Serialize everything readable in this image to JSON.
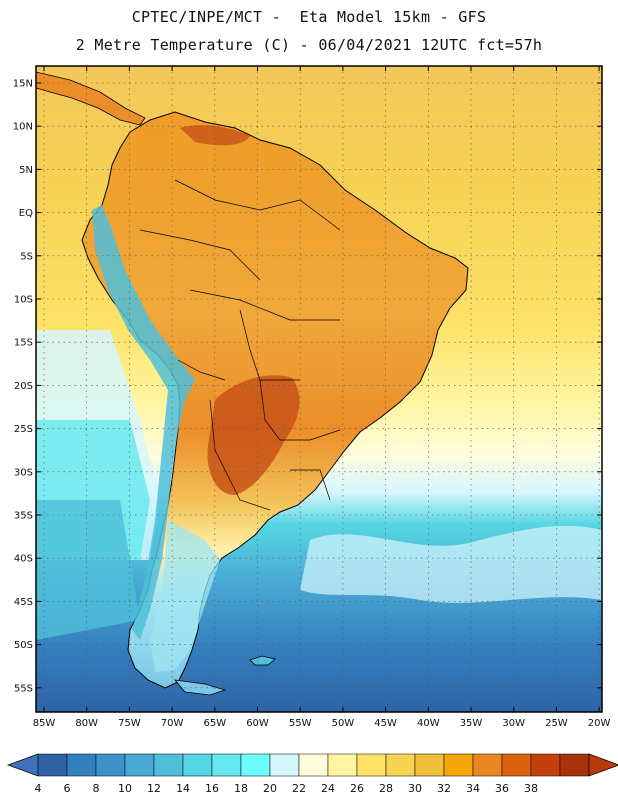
{
  "title_line1": "CPTEC/INPE/MCT -  Eta Model 15km - GFS",
  "title_line2": "2 Metre Temperature (C) - 06/04/2021 12UTC fct=57h",
  "lat_labels": [
    "15N",
    "10N",
    "5N",
    "EQ",
    "5S",
    "10S",
    "15S",
    "20S",
    "25S",
    "30S",
    "35S",
    "40S",
    "45S",
    "50S",
    "55S"
  ],
  "lon_labels": [
    "85W",
    "80W",
    "75W",
    "70W",
    "65W",
    "60W",
    "55W",
    "50W",
    "45W",
    "40W",
    "35W",
    "30W",
    "25W",
    "20W"
  ],
  "colorbar": {
    "labels": [
      "4",
      "6",
      "8",
      "10",
      "12",
      "14",
      "16",
      "18",
      "20",
      "22",
      "24",
      "26",
      "28",
      "30",
      "32",
      "34",
      "36",
      "38"
    ],
    "colors": [
      "#2f63a6",
      "#347fbe",
      "#3d93c9",
      "#49a9d4",
      "#4fbfd9",
      "#56d6e2",
      "#62e8ee",
      "#6cfcfd",
      "#d6f6fe",
      "#fffcdc",
      "#fff5a0",
      "#fde267",
      "#f6d350",
      "#efbf3a",
      "#f5a60c",
      "#ea8720",
      "#dd620e",
      "#c3400a",
      "#a8320a"
    ],
    "under_color": "#3f72b8",
    "over_color": "#b63a0c"
  }
}
